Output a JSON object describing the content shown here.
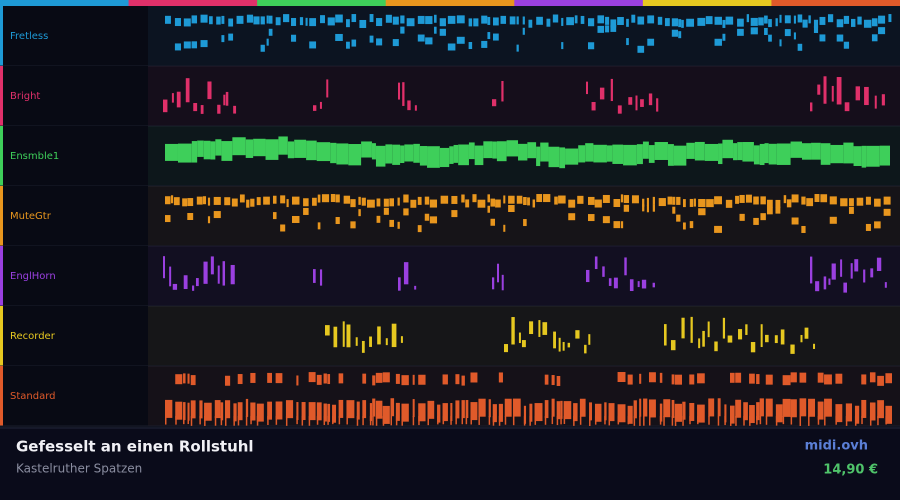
{
  "tracks": [
    {
      "name": "Fretless",
      "color": "#1e9ad6"
    },
    {
      "name": "Bright",
      "color": "#e0306a"
    },
    {
      "name": "Ensmble1",
      "color": "#3ecf5a"
    },
    {
      "name": "MuteGtr",
      "color": "#e8961e"
    },
    {
      "name": "EnglHorn",
      "color": "#9a40e0"
    },
    {
      "name": "Recorder",
      "color": "#e6c820"
    },
    {
      "name": "Standard",
      "color": "#e05a2a"
    }
  ],
  "footer": {
    "title": "Gefesselt an einen Rollstuhl",
    "artist": "Kastelruther Spatzen",
    "site": "midi.ovh",
    "price": "14,90 €"
  }
}
